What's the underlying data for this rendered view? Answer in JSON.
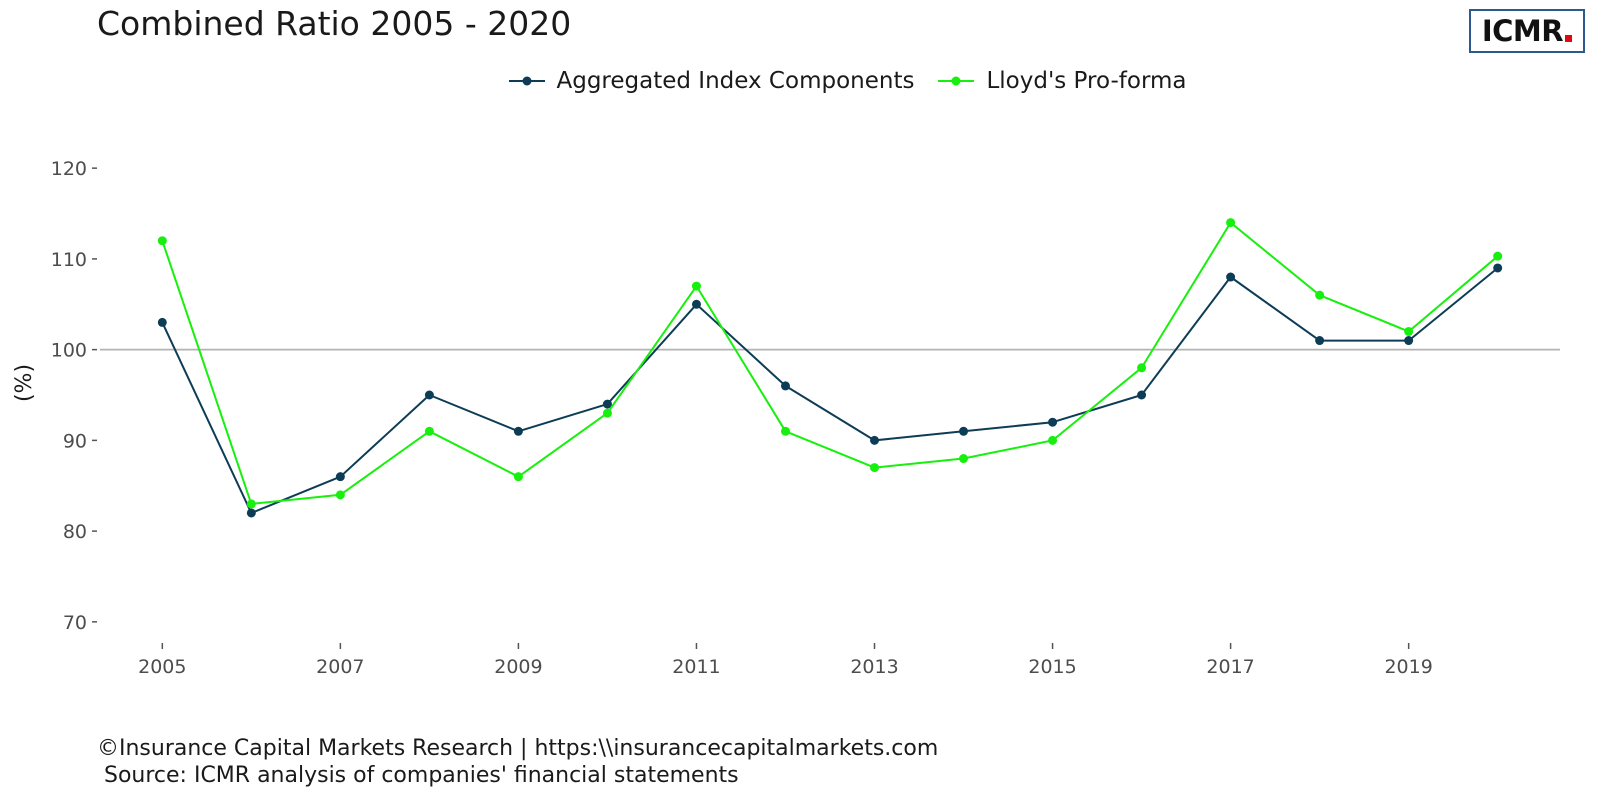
{
  "header": {
    "title": "Combined Ratio 2005 - 2020",
    "logo_text": "ICMR",
    "logo_dot_color": "#e30613"
  },
  "caption": {
    "line1": "©Insurance Capital Markets Research | https:\\\\insurancecapitalmarkets.com",
    "line2": " Source: ICMR analysis of companies' financial statements"
  },
  "chart_data": {
    "type": "line",
    "title": "Combined Ratio 2005 - 2020",
    "xlabel": "",
    "ylabel": "(%)",
    "x": [
      2005,
      2006,
      2007,
      2008,
      2009,
      2010,
      2011,
      2012,
      2013,
      2014,
      2015,
      2016,
      2017,
      2018,
      2019,
      2020
    ],
    "x_ticks": [
      "2005",
      "2007",
      "2009",
      "2011",
      "2013",
      "2015",
      "2017",
      "2019"
    ],
    "y_ticks": [
      "70",
      "80",
      "90",
      "100",
      "110",
      "120"
    ],
    "xlim": [
      2004.3,
      2020.7
    ],
    "ylim": [
      68,
      122
    ],
    "reference_line": 100,
    "reference_line_color": "#b3b3b3",
    "grid": false,
    "legend_position": "top",
    "series": [
      {
        "name": "Aggregated Index Components",
        "color": "#0d3d56",
        "values": [
          103,
          82,
          86,
          95,
          91,
          94,
          105,
          96,
          90,
          91,
          92,
          95,
          108,
          101,
          101,
          109
        ]
      },
      {
        "name": "Lloyd's Pro-forma",
        "color": "#17f00c",
        "values": [
          112,
          83,
          84,
          91,
          86,
          93,
          107,
          91,
          87,
          88,
          90,
          98,
          114,
          106,
          102,
          110.3
        ]
      }
    ]
  }
}
